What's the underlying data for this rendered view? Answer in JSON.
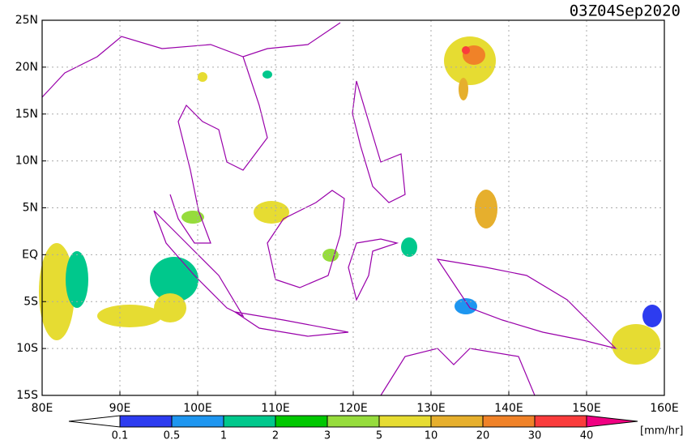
{
  "title": "03Z04Sep2020",
  "lon_labels": [
    "80E",
    "90E",
    "100E",
    "110E",
    "120E",
    "130E",
    "140E",
    "150E",
    "160E"
  ],
  "lat_labels": [
    "25N",
    "20N",
    "15N",
    "10N",
    "5N",
    "EQ",
    "5S",
    "10S",
    "15S"
  ],
  "colorbar": {
    "levels": [
      0.1,
      0.5,
      1,
      2,
      3,
      5,
      10,
      20,
      30,
      40
    ],
    "colors": [
      "#ffffff",
      "#2d3cf0",
      "#1e96f0",
      "#00c88c",
      "#00c800",
      "#96dc3c",
      "#e6dc32",
      "#e6af2d",
      "#f08228",
      "#fa3c3c",
      "#f00082"
    ],
    "unit": "[mm/hr]"
  }
}
